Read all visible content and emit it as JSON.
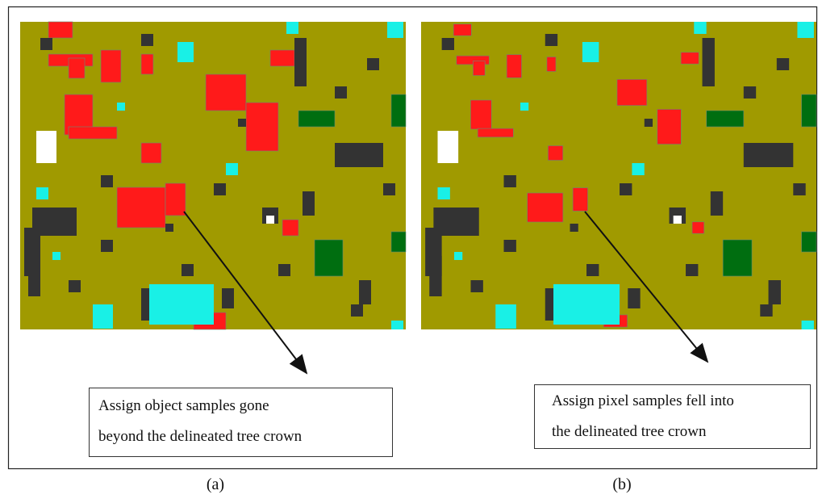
{
  "panels": [
    {
      "label": "(a)",
      "caption": [
        "Assign object samples gone",
        "beyond the delineated tree crown"
      ]
    },
    {
      "label": "(b)",
      "caption": [
        "Assign pixel samples fell into",
        "the delineated tree crown"
      ]
    }
  ]
}
